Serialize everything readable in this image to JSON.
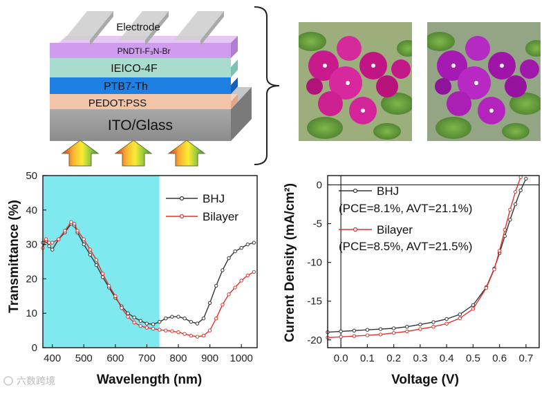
{
  "device": {
    "layers": [
      "Electrode",
      "PNDTI-F₃N-Br",
      "IEICO-4F",
      "PTB7-Th",
      "PEDOT:PSS",
      "ITO/Glass"
    ]
  },
  "photos": [
    "flower-photo-bhj",
    "flower-photo-bilayer"
  ],
  "watermark": "六数跨境",
  "colors": {
    "bhj": "#333333",
    "bilayer": "#e0302a",
    "shade": "#7fe9ef"
  },
  "chart_data": [
    {
      "type": "line",
      "title": "",
      "xlabel": "Wavelength (nm)",
      "ylabel": "Transmittance (%)",
      "xlim": [
        370,
        1050
      ],
      "ylim": [
        0,
        50
      ],
      "xticks": [
        "400",
        "500",
        "600",
        "700",
        "800",
        "900",
        "1000"
      ],
      "yticks": [
        "0",
        "10",
        "20",
        "30",
        "40",
        "50"
      ],
      "shaded_region": [
        370,
        740
      ],
      "legend": [
        "BHJ",
        "Bilayer"
      ],
      "series": [
        {
          "name": "BHJ",
          "x": [
            370,
            380,
            390,
            400,
            420,
            440,
            460,
            470,
            480,
            500,
            520,
            540,
            560,
            580,
            600,
            620,
            640,
            660,
            680,
            700,
            720,
            740,
            760,
            780,
            800,
            820,
            840,
            860,
            880,
            900,
            920,
            940,
            960,
            980,
            1000,
            1020,
            1040
          ],
          "y": [
            30.5,
            31,
            29.5,
            28.5,
            31.5,
            33.5,
            36.0,
            35.5,
            33.5,
            30.0,
            27.0,
            24.0,
            20.5,
            17.5,
            14.5,
            12.0,
            10.0,
            8.8,
            7.8,
            7.0,
            6.8,
            7.5,
            8.5,
            9.0,
            9.0,
            8.5,
            7.5,
            7.0,
            8.5,
            13.0,
            18.0,
            22.5,
            26.0,
            28.0,
            29.0,
            30.0,
            30.5
          ]
        },
        {
          "name": "Bilayer",
          "x": [
            370,
            380,
            390,
            400,
            420,
            440,
            460,
            470,
            480,
            500,
            520,
            540,
            560,
            580,
            600,
            620,
            640,
            660,
            680,
            700,
            720,
            740,
            760,
            780,
            800,
            820,
            840,
            860,
            880,
            900,
            920,
            940,
            960,
            980,
            1000,
            1020,
            1040
          ],
          "y": [
            29.0,
            31.5,
            30.5,
            30.5,
            31.5,
            34.0,
            36.5,
            36.0,
            34.0,
            31.5,
            28.5,
            25.5,
            21.5,
            18.0,
            15.0,
            11.5,
            9.0,
            7.3,
            6.3,
            5.8,
            5.5,
            5.2,
            5.0,
            4.8,
            4.5,
            4.0,
            3.5,
            3.2,
            3.5,
            5.0,
            8.5,
            12.5,
            15.5,
            17.5,
            19.5,
            21.0,
            22.0
          ]
        }
      ]
    },
    {
      "type": "line",
      "title": "",
      "xlabel": "Voltage (V)",
      "ylabel": "Current Density (mA/cm²)",
      "xlim": [
        -0.05,
        0.75
      ],
      "ylim": [
        -21,
        1.2
      ],
      "xticks": [
        "0.0",
        "0.1",
        "0.2",
        "0.3",
        "0.4",
        "0.5",
        "0.6",
        "0.7"
      ],
      "yticks": [
        "-20",
        "-15",
        "-10",
        "-5",
        "0"
      ],
      "legend": [
        "BHJ",
        "(PCE=8.1%, AVT=21.1%)",
        "Bilayer",
        "(PCE=8.5%, AVT=21.5%)"
      ],
      "series": [
        {
          "name": "BHJ",
          "x": [
            -0.05,
            0,
            0.05,
            0.1,
            0.15,
            0.2,
            0.25,
            0.3,
            0.35,
            0.4,
            0.45,
            0.5,
            0.55,
            0.58,
            0.6,
            0.62,
            0.64,
            0.66,
            0.68,
            0.7
          ],
          "y": [
            -19.0,
            -18.9,
            -18.8,
            -18.7,
            -18.6,
            -18.5,
            -18.3,
            -18.0,
            -17.7,
            -17.3,
            -16.7,
            -15.5,
            -13.2,
            -10.8,
            -8.8,
            -6.6,
            -4.5,
            -2.5,
            -0.7,
            0.8
          ]
        },
        {
          "name": "Bilayer",
          "x": [
            -0.05,
            0,
            0.05,
            0.1,
            0.15,
            0.2,
            0.25,
            0.3,
            0.35,
            0.4,
            0.45,
            0.5,
            0.55,
            0.58,
            0.6,
            0.62,
            0.64,
            0.66,
            0.68
          ],
          "y": [
            -19.7,
            -19.6,
            -19.5,
            -19.4,
            -19.3,
            -19.1,
            -18.9,
            -18.6,
            -18.3,
            -17.9,
            -17.2,
            -16.0,
            -13.3,
            -10.9,
            -8.5,
            -5.8,
            -3.2,
            -0.9,
            1.0
          ]
        }
      ]
    }
  ]
}
